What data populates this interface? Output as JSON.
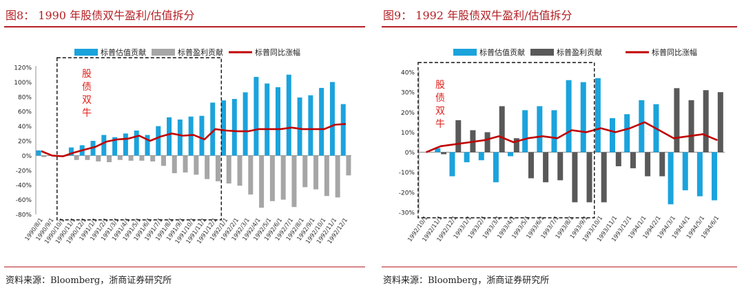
{
  "figures": [
    {
      "title": "图8： 1990 年股债双牛盈利/估值拆分",
      "source": "资料来源：Bloomberg，浙商证券研究所",
      "annotation": "股\n债\n双\n牛"
    },
    {
      "title": "图9： 1992 年股债双牛盈利/估值拆分",
      "source": "资料来源：Bloomberg，浙商证券研究所",
      "annotation": "股\n债\n双\n牛"
    }
  ],
  "chart_data": [
    {
      "type": "bar",
      "title": "",
      "legend_position": "top",
      "colors": {
        "valuation": "#1ba3dc",
        "earnings": "#a6a6a6",
        "return": "#c00000"
      },
      "categories": [
        "1990/8/1",
        "1990/9/1",
        "1990/10/1",
        "1990/11/1",
        "1990/12/1",
        "1991/1/1",
        "1991/2/1",
        "1991/3/1",
        "1991/4/1",
        "1991/5/1",
        "1991/6/1",
        "1991/7/1",
        "1991/8/1",
        "1991/9/1",
        "1991/10/1",
        "1991/11/1",
        "1991/12/1",
        "1992/1/1",
        "1992/2/1",
        "1992/3/1",
        "1992/4/1",
        "1992/5/1",
        "1992/6/1",
        "1992/7/1",
        "1992/8/1",
        "1992/9/1",
        "1992/10/1",
        "1992/11/1",
        "1992/12/1"
      ],
      "series": [
        {
          "name": "标普估值贡献",
          "kind": "bar",
          "values": [
            7,
            0,
            -1,
            11,
            14,
            20,
            28,
            25,
            30,
            34,
            28,
            40,
            52,
            49,
            53,
            54,
            72,
            75,
            77,
            86,
            107,
            98,
            93,
            110,
            79,
            82,
            92,
            100,
            70
          ]
        },
        {
          "name": "标普盈利贡献",
          "kind": "bar",
          "values": [
            -2,
            -1,
            -1,
            -6,
            -6,
            -8,
            -9,
            -6,
            -7,
            -7,
            -8,
            -14,
            -24,
            -23,
            -26,
            -32,
            -35,
            -38,
            -41,
            -53,
            -71,
            -62,
            -60,
            -70,
            -43,
            -46,
            -55,
            -57,
            -27
          ]
        },
        {
          "name": "标普同比涨幅",
          "kind": "line",
          "values": [
            6,
            0,
            -1,
            4,
            8,
            12,
            19,
            22,
            23,
            27,
            20,
            26,
            30,
            27,
            28,
            22,
            36,
            34,
            33,
            33,
            36,
            36,
            36,
            38,
            36,
            36,
            36,
            42,
            43
          ]
        }
      ],
      "ylim": [
        -80,
        120
      ],
      "yticks": [
        -80,
        -60,
        -40,
        -20,
        0,
        20,
        40,
        60,
        80,
        100,
        120
      ],
      "ytick_format": "percent",
      "highlight_box_range": [
        "1990/10/1",
        "1991/12/1"
      ]
    },
    {
      "type": "bar",
      "title": "",
      "legend_position": "top",
      "colors": {
        "valuation": "#1ba3dc",
        "earnings": "#595959",
        "return": "#c00000"
      },
      "categories": [
        "1992/10/1",
        "1992/11/1",
        "1992/12/1",
        "1993/1/1",
        "1993/2/1",
        "1993/3/1",
        "1993/4/1",
        "1993/5/1",
        "1993/6/1",
        "1993/7/1",
        "1993/8/1",
        "1993/9/1",
        "1993/10/1",
        "1993/11/1",
        "1993/12/1",
        "1994/1/1",
        "1994/2/1",
        "1994/3/1",
        "1994/4/1",
        "1994/5/1",
        "1994/6/1"
      ],
      "series": [
        {
          "name": "标普估值贡献",
          "kind": "bar",
          "values": [
            0,
            2,
            -12,
            -5,
            -4,
            -15,
            -2,
            21,
            23,
            21,
            36,
            35,
            37,
            17,
            19,
            26,
            24,
            -26,
            -19,
            -22,
            -24
          ]
        },
        {
          "name": "标普盈利贡献",
          "kind": "bar",
          "values": [
            0,
            -1,
            16,
            11,
            10,
            23,
            7,
            -13,
            -15,
            -14,
            -25,
            -25,
            -25,
            -7,
            -8,
            -12,
            -12,
            32,
            26,
            31,
            30
          ]
        },
        {
          "name": "标普同比涨幅",
          "kind": "line",
          "values": [
            0,
            3,
            4,
            5,
            6,
            8,
            5,
            7,
            8,
            7,
            11,
            10,
            12,
            10,
            12,
            15,
            11,
            7,
            8,
            9,
            6
          ]
        }
      ],
      "ylim": [
        -30,
        40
      ],
      "yticks": [
        -30,
        -20,
        -10,
        0,
        10,
        20,
        30,
        40
      ],
      "ytick_format": "percent",
      "highlight_box_range": [
        "1992/10/1",
        "1993/9/1"
      ]
    }
  ]
}
